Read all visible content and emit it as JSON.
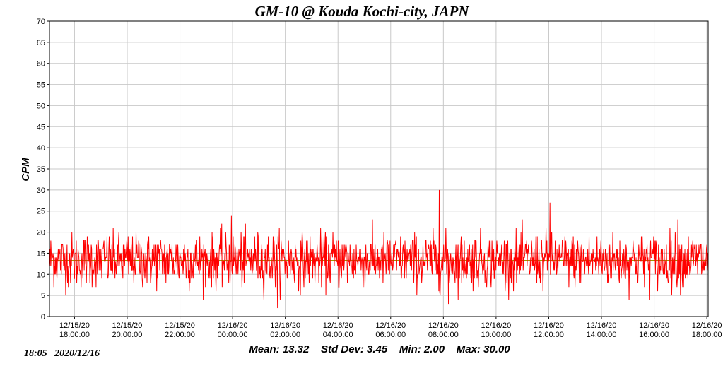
{
  "chart_data": {
    "type": "line",
    "title": "GM-10 @ Kouda Kochi-city, JAPN",
    "ylabel": "CPM",
    "xlabel": "",
    "ylim": [
      0,
      70
    ],
    "y_ticks": [
      0,
      5,
      10,
      15,
      20,
      25,
      30,
      35,
      40,
      45,
      50,
      55,
      60,
      65,
      70
    ],
    "x_range_hours": [
      17.05,
      42.05
    ],
    "x_ticks": [
      {
        "hour": 18,
        "date": "12/15/20",
        "time": "18:00:00"
      },
      {
        "hour": 20,
        "date": "12/15/20",
        "time": "20:00:00"
      },
      {
        "hour": 22,
        "date": "12/15/20",
        "time": "22:00:00"
      },
      {
        "hour": 24,
        "date": "12/16/20",
        "time": "00:00:00"
      },
      {
        "hour": 26,
        "date": "12/16/20",
        "time": "02:00:00"
      },
      {
        "hour": 28,
        "date": "12/16/20",
        "time": "04:00:00"
      },
      {
        "hour": 30,
        "date": "12/16/20",
        "time": "06:00:00"
      },
      {
        "hour": 32,
        "date": "12/16/20",
        "time": "08:00:00"
      },
      {
        "hour": 34,
        "date": "12/16/20",
        "time": "10:00:00"
      },
      {
        "hour": 36,
        "date": "12/16/20",
        "time": "12:00:00"
      },
      {
        "hour": 38,
        "date": "12/16/20",
        "time": "14:00:00"
      },
      {
        "hour": 40,
        "date": "12/16/20",
        "time": "16:00:00"
      },
      {
        "hour": 42,
        "date": "12/16/20",
        "time": "18:00:00"
      }
    ],
    "grid": true,
    "series": [
      {
        "color": "#ff0000",
        "mean": 13.32,
        "std_dev": 3.45,
        "min": 2.0,
        "max": 30.0,
        "num_samples": 1500,
        "spikes": [
          {
            "hour": 25.7,
            "value": 2
          },
          {
            "hour": 31.85,
            "value": 30
          },
          {
            "hour": 32.2,
            "value": 3
          },
          {
            "hour": 36.05,
            "value": 27
          },
          {
            "hour": 23.95,
            "value": 24
          },
          {
            "hour": 40.9,
            "value": 23
          }
        ]
      }
    ],
    "mean_line": {
      "value": 13.32,
      "color": "#999900"
    }
  },
  "footer": {
    "stats": "Mean: 13.32    Std Dev: 3.45    Min: 2.00    Max: 30.00",
    "timestamp": "18:05   2020/12/16"
  }
}
